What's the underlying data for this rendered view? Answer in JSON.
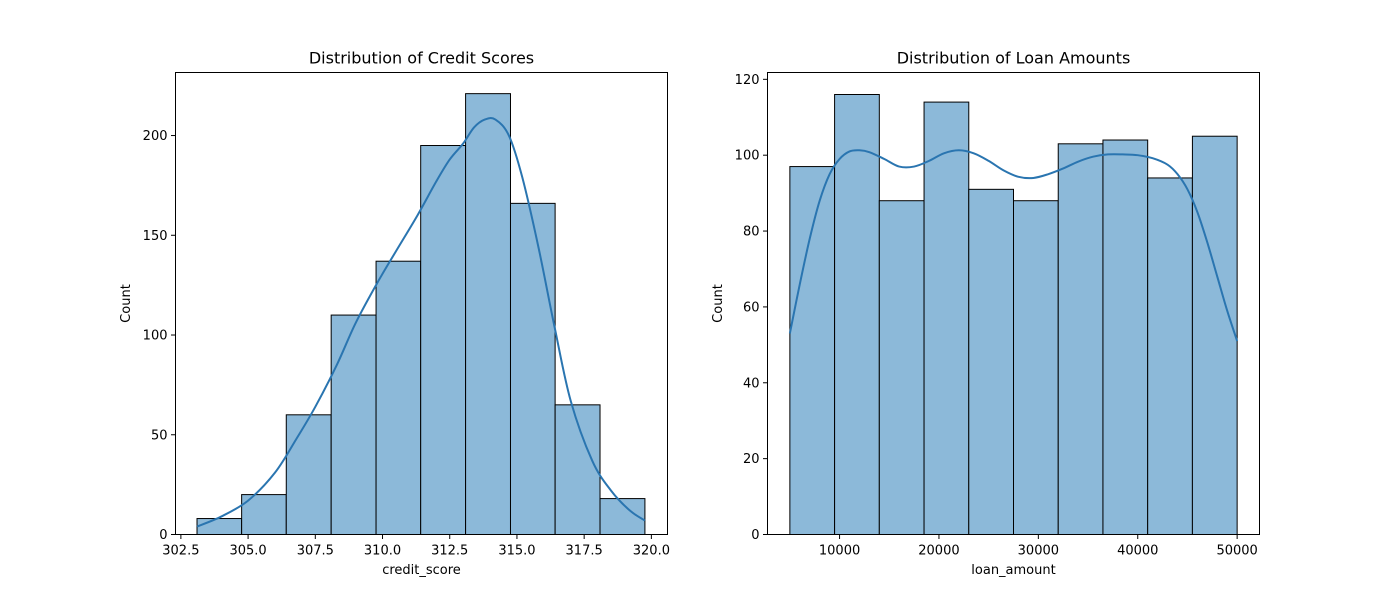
{
  "chart_data": [
    {
      "type": "bar",
      "title": "Distribution of Credit Scores",
      "xlabel": "credit_score",
      "ylabel": "Count",
      "xlim": [
        302.3,
        320.6
      ],
      "ylim": [
        0,
        231.6
      ],
      "xticks": [
        302.5,
        305.0,
        307.5,
        310.0,
        312.5,
        315.0,
        317.5,
        320.0
      ],
      "xtick_labels": [
        "302.5",
        "305.0",
        "307.5",
        "310.0",
        "312.5",
        "315.0",
        "317.5",
        "320.0"
      ],
      "yticks": [
        0,
        50,
        100,
        150,
        200
      ],
      "ytick_labels": [
        "0",
        "50",
        "100",
        "150",
        "200"
      ],
      "bin_edges": [
        303.1,
        304.76,
        306.42,
        308.09,
        309.76,
        311.42,
        313.09,
        314.76,
        316.42,
        318.09,
        319.76
      ],
      "values": [
        8,
        20,
        60,
        110,
        137,
        195,
        221,
        166,
        65,
        18
      ],
      "kde": {
        "x": [
          303.1,
          304.0,
          305.0,
          306.0,
          306.8,
          307.5,
          308.3,
          309.0,
          309.8,
          310.5,
          311.3,
          312.0,
          312.5,
          313.0,
          313.4,
          313.8,
          314.2,
          314.7,
          315.2,
          315.8,
          316.4,
          317.0,
          317.8,
          318.5,
          319.2,
          319.76
        ],
        "y": [
          4,
          9,
          17,
          31,
          48,
          64,
          85,
          106,
          126,
          142,
          160,
          177,
          188,
          196,
          204,
          208,
          208,
          200,
          179,
          144,
          104,
          67,
          37,
          22,
          12,
          7
        ]
      },
      "grid": false,
      "legend": "none",
      "colors": {
        "bar": "#8cb9d9",
        "line": "#2a75b0"
      }
    },
    {
      "type": "bar",
      "title": "Distribution of Loan Amounts",
      "xlabel": "loan_amount",
      "ylabel": "Count",
      "xlim": [
        2750,
        52250
      ],
      "ylim": [
        0,
        121.8
      ],
      "xticks": [
        10000,
        20000,
        30000,
        40000,
        50000
      ],
      "xtick_labels": [
        "10000",
        "20000",
        "30000",
        "40000",
        "50000"
      ],
      "yticks": [
        0,
        20,
        40,
        60,
        80,
        100,
        120
      ],
      "ytick_labels": [
        "0",
        "20",
        "40",
        "60",
        "80",
        "100",
        "120"
      ],
      "bin_edges": [
        5000,
        9500,
        14000,
        18500,
        23000,
        27500,
        32000,
        36500,
        41000,
        45500,
        50000
      ],
      "values": [
        97,
        116,
        88,
        114,
        91,
        88,
        103,
        104,
        94,
        105
      ],
      "kde": {
        "x": [
          5000,
          6000,
          7000,
          8000,
          9000,
          10000,
          11000,
          12000,
          13000,
          14500,
          16000,
          17500,
          19000,
          20500,
          22000,
          23500,
          25000,
          26500,
          28000,
          29500,
          31000,
          32500,
          34000,
          35500,
          37000,
          38500,
          40000,
          41500,
          43000,
          44000,
          45000,
          46000,
          47000,
          48000,
          49000,
          50000
        ],
        "y": [
          53,
          66,
          78,
          88,
          95,
          99,
          101,
          101.3,
          100.8,
          99,
          97,
          97,
          98.5,
          100.5,
          101.3,
          100.5,
          98.5,
          96,
          94.3,
          94,
          95,
          96.5,
          98.3,
          99.6,
          100.2,
          100.2,
          100,
          99.2,
          97.5,
          95,
          91,
          85,
          77,
          68,
          59,
          51
        ]
      },
      "grid": false,
      "legend": "none",
      "colors": {
        "bar": "#8cb9d9",
        "line": "#2a75b0"
      }
    }
  ]
}
